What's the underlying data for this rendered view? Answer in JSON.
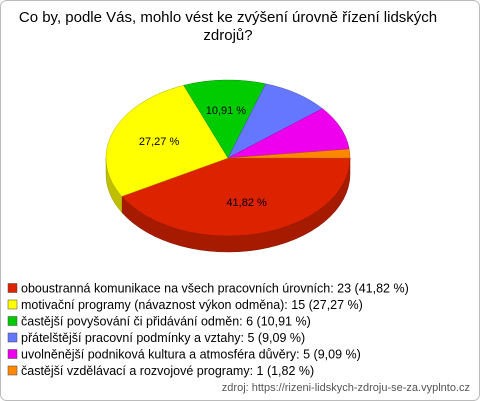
{
  "chart_data": {
    "type": "pie",
    "title": [
      "Co by, podle Vás, mohlo vést ke zvýšení úrovně řízení lidských",
      "zdrojů?"
    ],
    "categories": [
      "oboustranná komunikace na všech pracovních úrovních: 23 (41,82 %)",
      "motivační programy (návaznost výkon odměna): 15 (27,27 %)",
      "častější povyšování či přidávání odměn: 6 (10,91 %)",
      "přátelštější pracovní podmínky a vztahy: 5 (9,09 %)",
      "uvolněnější podniková kultura a atmosféra důvěry: 5 (9,09 %)",
      "častější vzdělávací a rozvojové programy: 1 (1,82 %)"
    ],
    "values": [
      41.82,
      27.27,
      10.91,
      9.09,
      9.09,
      1.82
    ],
    "value_labels": [
      "41,82 %",
      "27,27 %",
      "10,91 %",
      null,
      null,
      null
    ],
    "colors": [
      "#dd2200",
      "#ffff00",
      "#00cc00",
      "#6677ff",
      "#ee00ee",
      "#ff8800"
    ],
    "source": "zdroj: https://rizeni-lidskych-zdroju-se-za.vyplnto.cz"
  }
}
